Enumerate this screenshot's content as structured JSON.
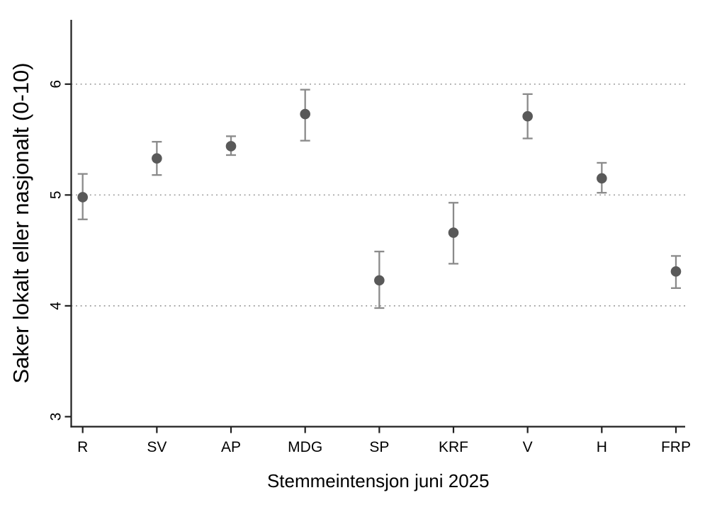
{
  "chart_data": {
    "type": "scatter",
    "subtype": "dot-plot-with-95ci-error-bars",
    "title": "",
    "xlabel": "Stemmeintensjon juni 2025",
    "ylabel": "Saker lokalt eller nasjonalt (0-10)",
    "categories": [
      "R",
      "SV",
      "AP",
      "MDG",
      "SP",
      "KRF",
      "V",
      "H",
      "FRP"
    ],
    "series": [
      {
        "name": "Saker lokalt eller nasjonalt (0-10)",
        "values": [
          4.98,
          5.33,
          5.44,
          5.73,
          4.23,
          4.66,
          5.71,
          5.15,
          4.31
        ],
        "ci_low": [
          4.78,
          5.18,
          5.36,
          5.49,
          3.98,
          4.38,
          5.51,
          5.02,
          4.16
        ],
        "ci_high": [
          5.19,
          5.48,
          5.53,
          5.95,
          4.49,
          4.93,
          5.91,
          5.29,
          4.45
        ]
      }
    ],
    "yticks": [
      3,
      4,
      5,
      6
    ],
    "gridlines_at": [
      4,
      5,
      6
    ],
    "ylim": [
      2.91,
      6.58
    ],
    "grid": "horizontal dotted at y major ticks 4,5,6",
    "legend": "none",
    "colors": {
      "marker": "#595959",
      "error_bar": "#8a8a8a",
      "gridline": "#999999",
      "axis": "#1f1f1f",
      "text": "#000000",
      "background": "#ffffff"
    }
  }
}
